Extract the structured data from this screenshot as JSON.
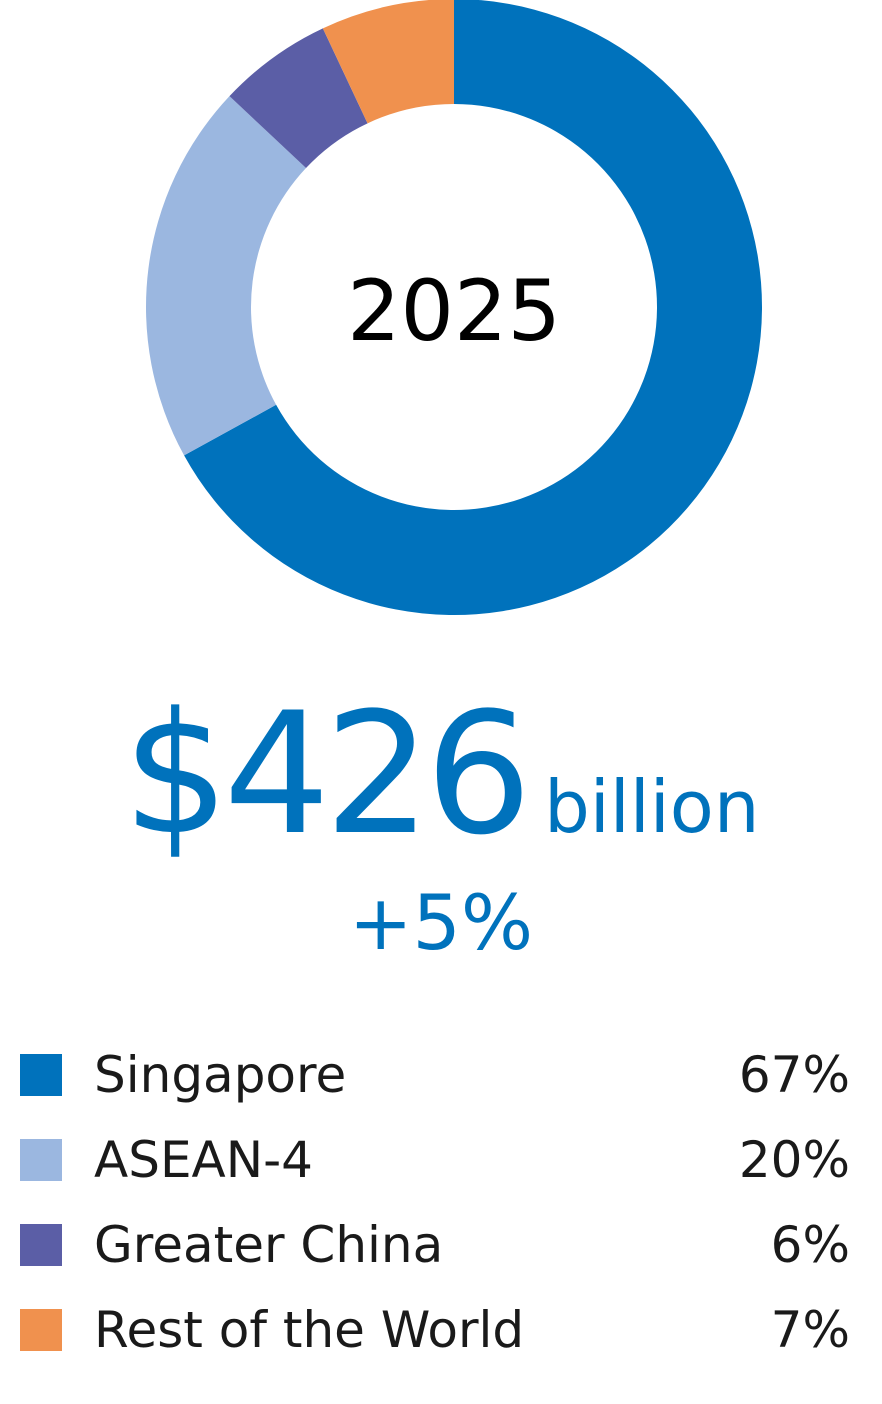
{
  "chart_data": {
    "type": "pie",
    "title": "2025",
    "categories": [
      "Singapore",
      "ASEAN-4",
      "Greater China",
      "Rest of the World"
    ],
    "values": [
      67,
      20,
      6,
      7
    ],
    "value_labels": [
      "67%",
      "20%",
      "6%",
      "7%"
    ],
    "colors": [
      "#0072bc",
      "#9bb7e0",
      "#5b5ea6",
      "#f0914e"
    ],
    "legend": "bottom"
  },
  "summary": {
    "total": "$426",
    "unit": "billion",
    "growth": "+5%"
  }
}
